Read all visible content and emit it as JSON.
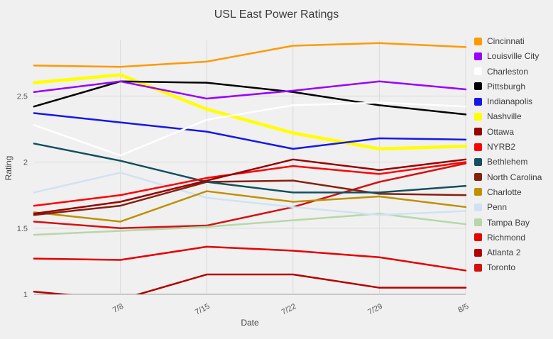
{
  "chart_data": {
    "type": "line",
    "title": "USL East Power Ratings",
    "xlabel": "Date",
    "ylabel": "Rating",
    "x": [
      "",
      "7/8",
      "7/15",
      "7/22",
      "7/29",
      "8/5"
    ],
    "x_tick_labels": [
      "7/8",
      "7/15",
      "7/22",
      "7/29",
      "8/5"
    ],
    "y_ticks": [
      1,
      1.5,
      2,
      2.5
    ],
    "ylim": [
      1,
      2.92
    ],
    "grid": true,
    "legend_position": "right",
    "colors": {
      "grid": "#dadada",
      "baseline": "#9e9e9e",
      "background": "#f0f0f0",
      "title_text": "#3c3c3c",
      "tick_text": "#555555"
    },
    "series": [
      {
        "name": "Cincinnati",
        "color": "#ff9900",
        "width": 2.5,
        "values": [
          2.73,
          2.72,
          2.76,
          2.88,
          2.9,
          2.87
        ]
      },
      {
        "name": "Louisville City",
        "color": "#9900ff",
        "width": 2.5,
        "values": [
          2.53,
          2.61,
          2.48,
          2.54,
          2.61,
          2.55
        ]
      },
      {
        "name": "Charleston",
        "color": "#ffffff",
        "width": 2.5,
        "values": [
          2.28,
          2.05,
          2.32,
          2.43,
          2.45,
          2.42
        ]
      },
      {
        "name": "Pittsburgh",
        "color": "#000000",
        "width": 2.5,
        "values": [
          2.42,
          2.61,
          2.6,
          2.53,
          2.43,
          2.36
        ]
      },
      {
        "name": "Indianapolis",
        "color": "#1717e8",
        "width": 2.5,
        "values": [
          2.37,
          2.3,
          2.23,
          2.1,
          2.18,
          2.17
        ]
      },
      {
        "name": "Nashville",
        "color": "#ffff00",
        "width": 4.5,
        "values": [
          2.6,
          2.66,
          2.4,
          2.22,
          2.1,
          2.12
        ]
      },
      {
        "name": "Ottawa",
        "color": "#980000",
        "width": 2.5,
        "values": [
          1.61,
          1.7,
          1.86,
          2.02,
          1.94,
          2.02
        ]
      },
      {
        "name": "NYRB2",
        "color": "#ff0000",
        "width": 2.5,
        "values": [
          1.67,
          1.75,
          1.88,
          1.97,
          1.91,
          2.0
        ]
      },
      {
        "name": "Bethlehem",
        "color": "#134f5c",
        "width": 2.5,
        "values": [
          2.14,
          2.01,
          1.85,
          1.77,
          1.77,
          1.82
        ]
      },
      {
        "name": "North Carolina",
        "color": "#85200c",
        "width": 2.5,
        "values": [
          1.6,
          1.67,
          1.85,
          1.86,
          1.76,
          1.75
        ]
      },
      {
        "name": "Charlotte",
        "color": "#bf9000",
        "width": 2.5,
        "values": [
          1.62,
          1.55,
          1.78,
          1.7,
          1.74,
          1.66
        ]
      },
      {
        "name": "Penn",
        "color": "#cfe2f3",
        "width": 2.5,
        "values": [
          1.77,
          1.92,
          1.73,
          1.66,
          1.6,
          1.63
        ]
      },
      {
        "name": "Tampa Bay",
        "color": "#b6d7a8",
        "width": 2.5,
        "values": [
          1.45,
          1.48,
          1.51,
          1.56,
          1.61,
          1.53
        ]
      },
      {
        "name": "Richmond",
        "color": "#e60000",
        "width": 2.5,
        "values": [
          1.27,
          1.26,
          1.36,
          1.33,
          1.28,
          1.18
        ]
      },
      {
        "name": "Atlanta 2",
        "color": "#b30000",
        "width": 2.5,
        "values": [
          1.02,
          0.96,
          1.15,
          1.15,
          1.05,
          1.05
        ]
      },
      {
        "name": "Toronto",
        "color": "#d41111",
        "width": 2.5,
        "values": [
          1.55,
          1.5,
          1.52,
          1.66,
          1.85,
          1.99
        ]
      }
    ]
  }
}
